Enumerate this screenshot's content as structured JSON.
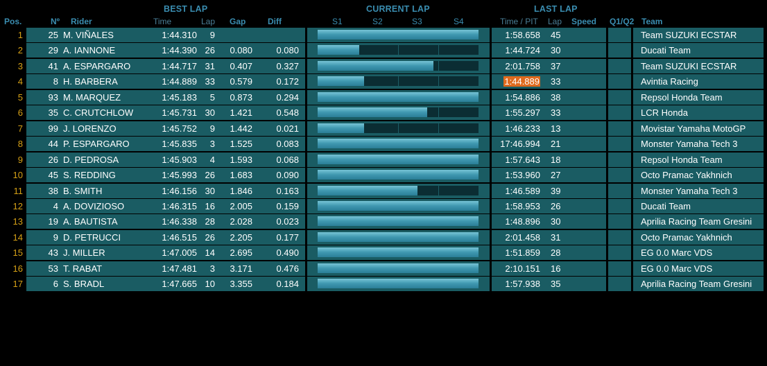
{
  "headers": {
    "best_lap": "BEST LAP",
    "current_lap": "CURRENT LAP",
    "last_lap": "LAST LAP"
  },
  "columns": {
    "pos": "Pos.",
    "num": "Nº",
    "rider": "Rider",
    "time": "Time",
    "lap": "Lap",
    "gap": "Gap",
    "diff": "Diff",
    "s1": "S1",
    "s2": "S2",
    "s3": "S3",
    "s4": "S4",
    "time_pit": "Time / PIT",
    "last_lap_lap": "Lap",
    "speed": "Speed",
    "q1q2": "Q1/Q2",
    "team": "Team"
  },
  "colors": {
    "header": "#3a8db0",
    "position": "#d5a016",
    "panel": "#1a5c63",
    "bar_fill": "#4aa3bb",
    "bar_track": "#0b2d33",
    "highlight": "#e06a1e"
  },
  "rows": [
    {
      "pos": "1",
      "num": "25",
      "rider": "M. VIÑALES",
      "best_time": "1:44.310",
      "best_lap": "9",
      "gap": "",
      "diff": "",
      "progress": 1.0,
      "last_time": "1:58.658",
      "last_lap": "45",
      "highlight": false,
      "team": "Team SUZUKI ECSTAR"
    },
    {
      "pos": "2",
      "num": "29",
      "rider": "A. IANNONE",
      "best_time": "1:44.390",
      "best_lap": "26",
      "gap": "0.080",
      "diff": "0.080",
      "progress": 0.26,
      "last_time": "1:44.724",
      "last_lap": "30",
      "highlight": false,
      "team": "Ducati Team"
    },
    {
      "pos": "3",
      "num": "41",
      "rider": "A. ESPARGARO",
      "best_time": "1:44.717",
      "best_lap": "31",
      "gap": "0.407",
      "diff": "0.327",
      "progress": 0.72,
      "last_time": "2:01.758",
      "last_lap": "37",
      "highlight": false,
      "team": "Team SUZUKI ECSTAR"
    },
    {
      "pos": "4",
      "num": "8",
      "rider": "H. BARBERA",
      "best_time": "1:44.889",
      "best_lap": "33",
      "gap": "0.579",
      "diff": "0.172",
      "progress": 0.29,
      "last_time": "1:44.889",
      "last_lap": "33",
      "highlight": true,
      "team": "Avintia Racing"
    },
    {
      "pos": "5",
      "num": "93",
      "rider": "M. MARQUEZ",
      "best_time": "1:45.183",
      "best_lap": "5",
      "gap": "0.873",
      "diff": "0.294",
      "progress": 1.0,
      "last_time": "1:54.886",
      "last_lap": "38",
      "highlight": false,
      "team": "Repsol Honda Team"
    },
    {
      "pos": "6",
      "num": "35",
      "rider": "C. CRUTCHLOW",
      "best_time": "1:45.731",
      "best_lap": "30",
      "gap": "1.421",
      "diff": "0.548",
      "progress": 0.68,
      "last_time": "1:55.297",
      "last_lap": "33",
      "highlight": false,
      "team": "LCR Honda"
    },
    {
      "pos": "7",
      "num": "99",
      "rider": "J. LORENZO",
      "best_time": "1:45.752",
      "best_lap": "9",
      "gap": "1.442",
      "diff": "0.021",
      "progress": 0.29,
      "last_time": "1:46.233",
      "last_lap": "13",
      "highlight": false,
      "team": "Movistar Yamaha MotoGP"
    },
    {
      "pos": "8",
      "num": "44",
      "rider": "P. ESPARGARO",
      "best_time": "1:45.835",
      "best_lap": "3",
      "gap": "1.525",
      "diff": "0.083",
      "progress": 1.0,
      "last_time": "17:46.994",
      "last_lap": "21",
      "highlight": false,
      "team": "Monster Yamaha Tech 3"
    },
    {
      "pos": "9",
      "num": "26",
      "rider": "D. PEDROSA",
      "best_time": "1:45.903",
      "best_lap": "4",
      "gap": "1.593",
      "diff": "0.068",
      "progress": 1.0,
      "last_time": "1:57.643",
      "last_lap": "18",
      "highlight": false,
      "team": "Repsol Honda Team"
    },
    {
      "pos": "10",
      "num": "45",
      "rider": "S. REDDING",
      "best_time": "1:45.993",
      "best_lap": "26",
      "gap": "1.683",
      "diff": "0.090",
      "progress": 1.0,
      "last_time": "1:53.960",
      "last_lap": "27",
      "highlight": false,
      "team": "Octo Pramac Yakhnich"
    },
    {
      "pos": "11",
      "num": "38",
      "rider": "B. SMITH",
      "best_time": "1:46.156",
      "best_lap": "30",
      "gap": "1.846",
      "diff": "0.163",
      "progress": 0.62,
      "last_time": "1:46.589",
      "last_lap": "39",
      "highlight": false,
      "team": "Monster Yamaha Tech 3"
    },
    {
      "pos": "12",
      "num": "4",
      "rider": "A. DOVIZIOSO",
      "best_time": "1:46.315",
      "best_lap": "16",
      "gap": "2.005",
      "diff": "0.159",
      "progress": 1.0,
      "last_time": "1:58.953",
      "last_lap": "26",
      "highlight": false,
      "team": "Ducati Team"
    },
    {
      "pos": "13",
      "num": "19",
      "rider": "A. BAUTISTA",
      "best_time": "1:46.338",
      "best_lap": "28",
      "gap": "2.028",
      "diff": "0.023",
      "progress": 1.0,
      "last_time": "1:48.896",
      "last_lap": "30",
      "highlight": false,
      "team": "Aprilia Racing Team Gresini"
    },
    {
      "pos": "14",
      "num": "9",
      "rider": "D. PETRUCCI",
      "best_time": "1:46.515",
      "best_lap": "26",
      "gap": "2.205",
      "diff": "0.177",
      "progress": 1.0,
      "last_time": "2:01.458",
      "last_lap": "31",
      "highlight": false,
      "team": "Octo Pramac Yakhnich"
    },
    {
      "pos": "15",
      "num": "43",
      "rider": "J. MILLER",
      "best_time": "1:47.005",
      "best_lap": "14",
      "gap": "2.695",
      "diff": "0.490",
      "progress": 1.0,
      "last_time": "1:51.859",
      "last_lap": "28",
      "highlight": false,
      "team": "EG 0.0 Marc VDS"
    },
    {
      "pos": "16",
      "num": "53",
      "rider": "T. RABAT",
      "best_time": "1:47.481",
      "best_lap": "3",
      "gap": "3.171",
      "diff": "0.476",
      "progress": 1.0,
      "last_time": "2:10.151",
      "last_lap": "16",
      "highlight": false,
      "team": "EG 0.0 Marc VDS"
    },
    {
      "pos": "17",
      "num": "6",
      "rider": "S. BRADL",
      "best_time": "1:47.665",
      "best_lap": "10",
      "gap": "3.355",
      "diff": "0.184",
      "progress": 1.0,
      "last_time": "1:57.938",
      "last_lap": "35",
      "highlight": false,
      "team": "Aprilia Racing Team Gresini"
    }
  ]
}
